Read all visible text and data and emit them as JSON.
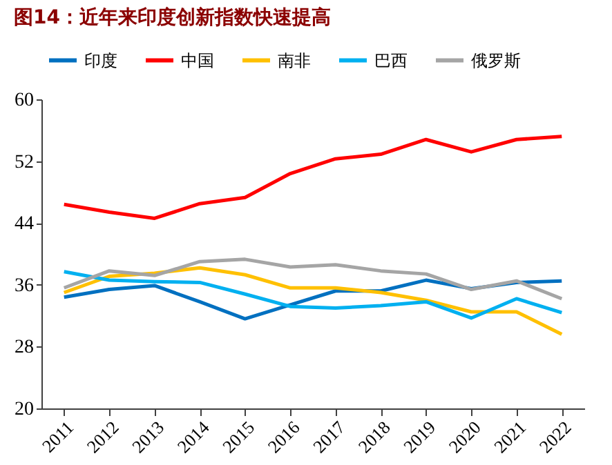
{
  "chart_data": {
    "type": "line",
    "title": "图14：近年来印度创新指数快速提高",
    "categories": [
      "2011",
      "2012",
      "2013",
      "2014",
      "2015",
      "2016",
      "2017",
      "2018",
      "2019",
      "2020",
      "2021",
      "2022"
    ],
    "series": [
      {
        "name": "印度",
        "color": "#0070c0",
        "values": [
          34.4,
          35.4,
          35.9,
          33.8,
          31.6,
          33.4,
          35.2,
          35.2,
          36.6,
          35.5,
          36.3,
          36.5
        ]
      },
      {
        "name": "中国",
        "color": "#ff0000",
        "values": [
          46.4,
          45.4,
          44.6,
          46.5,
          47.3,
          50.4,
          52.3,
          52.9,
          54.8,
          53.2,
          54.8,
          55.2
        ]
      },
      {
        "name": "南非",
        "color": "#ffc000",
        "values": [
          35.0,
          37.1,
          37.5,
          38.2,
          37.3,
          35.6,
          35.6,
          35.0,
          34.0,
          32.5,
          32.5,
          29.6
        ]
      },
      {
        "name": "巴西",
        "color": "#00b0f0",
        "values": [
          37.7,
          36.6,
          36.4,
          36.3,
          34.8,
          33.2,
          33.0,
          33.3,
          33.8,
          31.7,
          34.2,
          32.4
        ]
      },
      {
        "name": "俄罗斯",
        "color": "#a5a5a5",
        "values": [
          35.6,
          37.8,
          37.2,
          39.0,
          39.3,
          38.3,
          38.6,
          37.8,
          37.4,
          35.4,
          36.5,
          34.2
        ]
      }
    ],
    "ylim": [
      20,
      60
    ],
    "yticks": [
      20,
      28,
      36,
      44,
      52,
      60
    ],
    "grid": false,
    "legend": "top",
    "marker": "none",
    "line_style": "solid"
  }
}
